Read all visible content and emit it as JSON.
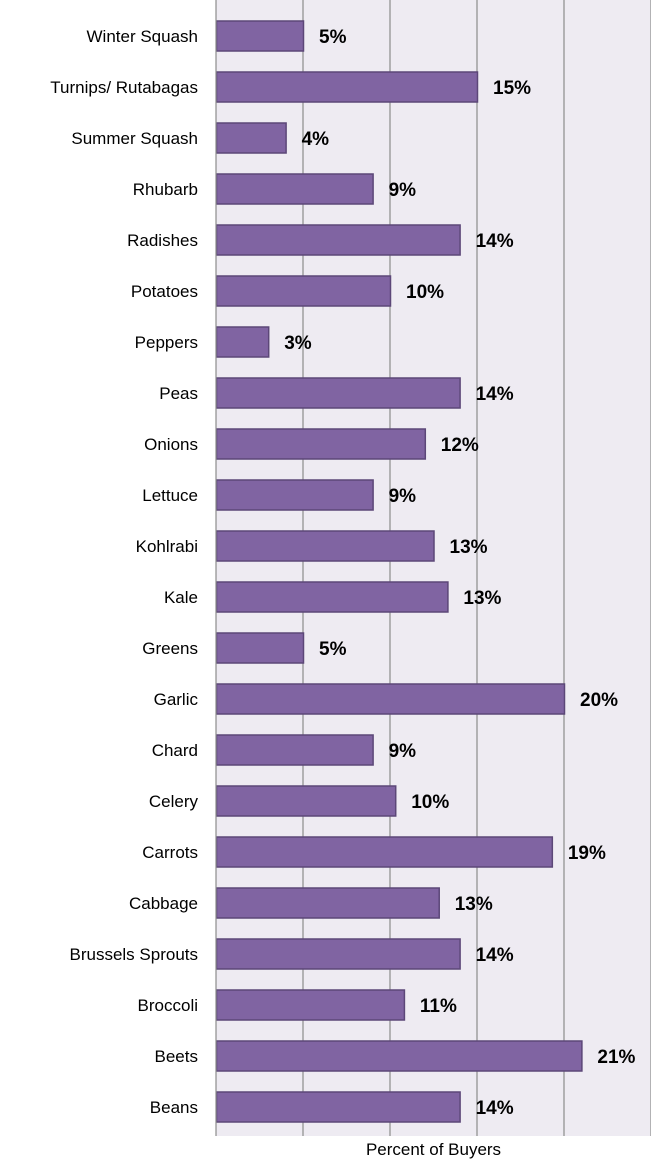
{
  "chart_data": {
    "type": "bar",
    "orientation": "horizontal",
    "categories": [
      "Winter Squash",
      "Turnips/ Rutabagas",
      "Summer Squash",
      "Rhubarb",
      "Radishes",
      "Potatoes",
      "Peppers",
      "Peas",
      "Onions",
      "Lettuce",
      "Kohlrabi",
      "Kale",
      "Greens",
      "Garlic",
      "Chard",
      "Celery",
      "Carrots",
      "Cabbage",
      "Brussels Sprouts",
      "Broccoli",
      "Beets",
      "Beans"
    ],
    "values": [
      5,
      15,
      4,
      9,
      14,
      10,
      3,
      14,
      12,
      9,
      12.5,
      13.3,
      5,
      20,
      9,
      10.3,
      19.3,
      12.8,
      14,
      10.8,
      21,
      14
    ],
    "value_labels": [
      "5%",
      "15%",
      "4%",
      "9%",
      "14%",
      "10%",
      "3%",
      "14%",
      "12%",
      "9%",
      "13%",
      "13%",
      "5%",
      "20%",
      "9%",
      "10%",
      "19%",
      "13%",
      "14%",
      "11%",
      "21%",
      "14%"
    ],
    "title": "",
    "xlabel": "Percent of Buyers",
    "ylabel": "",
    "xlim": [
      0,
      25
    ],
    "x_gridline_interval": 5,
    "grid": true,
    "legend": "none",
    "bar_color": "#8064a2",
    "bar_border_color": "#5c4778",
    "plot_background": "#eeebf2",
    "gridline_color": "#8c8c8c"
  }
}
